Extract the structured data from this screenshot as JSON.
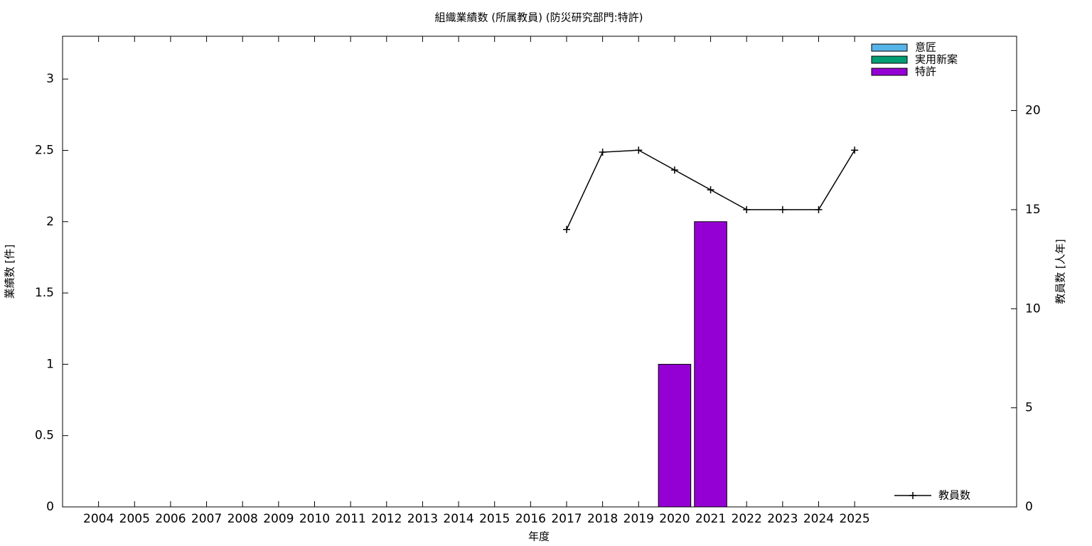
{
  "chart_data": {
    "type": "bar",
    "title": "組織業績数 (所属教員) (防災研究部門:特許)",
    "x_label": "年度",
    "y_label": "業績数 [件]",
    "y2_label": "教員数 [人年]",
    "categories": [
      "2004",
      "2005",
      "2006",
      "2007",
      "2008",
      "2009",
      "2010",
      "2011",
      "2012",
      "2013",
      "2014",
      "2015",
      "2016",
      "2017",
      "2018",
      "2019",
      "2020",
      "2021",
      "2022",
      "2023",
      "2024",
      "2025"
    ],
    "stacked": true,
    "series": [
      {
        "name": "意匠",
        "type": "bar",
        "color": "#56b4e9",
        "values": [
          0,
          0,
          0,
          0,
          0,
          0,
          0,
          0,
          0,
          0,
          0,
          0,
          0,
          0,
          0,
          0,
          0,
          0,
          0,
          0,
          0,
          0
        ]
      },
      {
        "name": "実用新案",
        "type": "bar",
        "color": "#009e73",
        "values": [
          0,
          0,
          0,
          0,
          0,
          0,
          0,
          0,
          0,
          0,
          0,
          0,
          0,
          0,
          0,
          0,
          0,
          0,
          0,
          0,
          0,
          0
        ]
      },
      {
        "name": "特許",
        "type": "bar",
        "color": "#9400d3",
        "values": [
          0,
          0,
          0,
          0,
          0,
          0,
          0,
          0,
          0,
          0,
          0,
          0,
          0,
          0,
          0,
          0,
          1,
          2,
          0,
          0,
          0,
          0
        ]
      },
      {
        "name": "教員数",
        "type": "line",
        "axis": "y2",
        "color": "#000000",
        "values": [
          null,
          null,
          null,
          null,
          null,
          null,
          null,
          null,
          null,
          null,
          null,
          null,
          null,
          14,
          17.9,
          18,
          17,
          16,
          15,
          15,
          15,
          18
        ]
      }
    ],
    "ylim": [
      0,
      3.3
    ],
    "yticks": [
      0,
      0.5,
      1,
      1.5,
      2,
      2.5,
      3
    ],
    "y2lim": [
      0,
      23.75
    ],
    "y2ticks": [
      0,
      5,
      10,
      15,
      20
    ],
    "grid": false
  }
}
